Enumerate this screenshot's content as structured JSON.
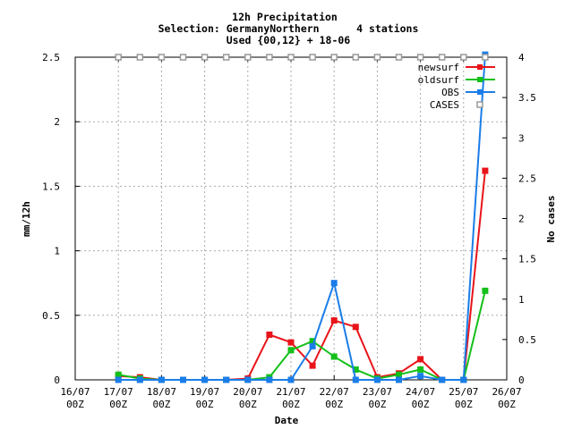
{
  "chart_data": {
    "type": "line",
    "title": "12h Precipitation",
    "subtitle_lines": [
      "Selection: GermanyNorthern      4 stations",
      "Used {00,12} + 18-06"
    ],
    "xlabel": "Date",
    "ylabel": "mm/12h",
    "y2label": "No cases",
    "x_tick_labels": [
      [
        "16/07",
        "00Z"
      ],
      [
        "17/07",
        "00Z"
      ],
      [
        "18/07",
        "00Z"
      ],
      [
        "19/07",
        "00Z"
      ],
      [
        "20/07",
        "00Z"
      ],
      [
        "21/07",
        "00Z"
      ],
      [
        "22/07",
        "00Z"
      ],
      [
        "23/07",
        "00Z"
      ],
      [
        "24/07",
        "00Z"
      ],
      [
        "25/07",
        "00Z"
      ],
      [
        "26/07",
        "00Z"
      ]
    ],
    "xlim": [
      0,
      10
    ],
    "ylim": [
      0,
      2.5
    ],
    "y2lim": [
      0,
      4
    ],
    "yticks": [
      "0",
      "0.5",
      "1",
      "1.5",
      "2",
      "2.5"
    ],
    "y2ticks": [
      "0",
      "0.5",
      "1",
      "1.5",
      "2",
      "2.5",
      "3",
      "3.5",
      "4"
    ],
    "grid": true,
    "legend_position": "top-right",
    "x": [
      1,
      1.5,
      2,
      2.5,
      3,
      3.5,
      4,
      4.5,
      5,
      5.5,
      6,
      6.5,
      7,
      7.5,
      8,
      8.5,
      9,
      9.5
    ],
    "series": [
      {
        "name": "newsurf",
        "color": "#e8141a",
        "axis": "y",
        "values": [
          0.03,
          0.02,
          0.0,
          0.0,
          0.0,
          0.0,
          0.01,
          0.35,
          0.29,
          0.11,
          0.46,
          0.41,
          0.02,
          0.05,
          0.16,
          0.0,
          0.0,
          1.62
        ]
      },
      {
        "name": "oldsurf",
        "color": "#14c01a",
        "axis": "y",
        "values": [
          0.04,
          0.01,
          0.0,
          0.0,
          0.0,
          0.0,
          0.0,
          0.02,
          0.23,
          0.3,
          0.18,
          0.08,
          0.01,
          0.04,
          0.08,
          0.0,
          0.0,
          0.69
        ]
      },
      {
        "name": "OBS",
        "color": "#1a7de8",
        "axis": "y",
        "values": [
          0.0,
          0.0,
          0.0,
          0.0,
          0.0,
          0.0,
          0.0,
          0.0,
          0.0,
          0.26,
          0.75,
          0.0,
          0.0,
          0.0,
          0.03,
          0.0,
          0.0,
          2.52
        ]
      },
      {
        "name": "CASES",
        "color": "#999999",
        "axis": "y2",
        "marker": "open-square",
        "line": false,
        "values": [
          4,
          4,
          4,
          4,
          4,
          4,
          4,
          4,
          4,
          4,
          4,
          4,
          4,
          4,
          4,
          4,
          4,
          4
        ]
      }
    ]
  }
}
